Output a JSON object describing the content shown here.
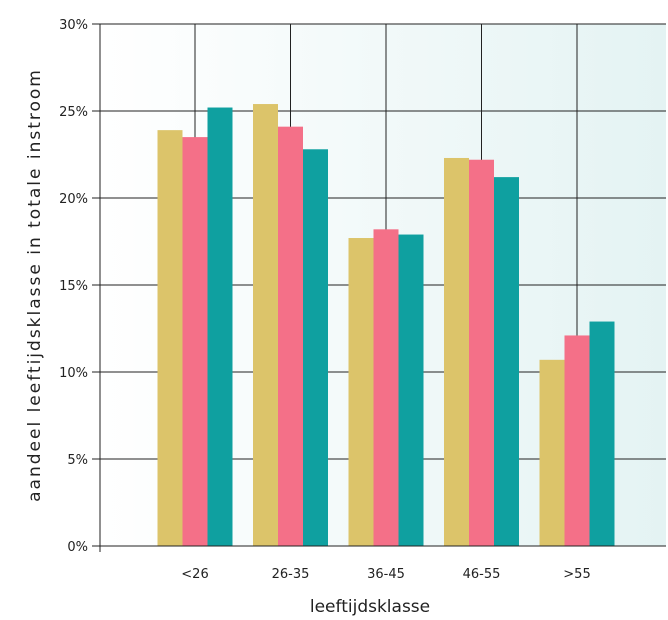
{
  "chart_data": {
    "type": "bar",
    "xlabel": "leeftijdsklasse",
    "ylabel": "aandeel leeftijdsklasse in totale instroom",
    "categories": [
      "<26",
      "26-35",
      "36-45",
      "46-55",
      ">55"
    ],
    "series": [
      {
        "color": "#dcc46a",
        "values": [
          23.9,
          25.4,
          17.7,
          22.3,
          10.7
        ]
      },
      {
        "color": "#f47088",
        "values": [
          23.5,
          24.1,
          18.2,
          22.2,
          12.1
        ]
      },
      {
        "color": "#0fa0a0",
        "values": [
          25.2,
          22.8,
          17.9,
          21.2,
          12.9
        ]
      }
    ],
    "ylim": [
      0,
      30
    ],
    "yticks": [
      "0%",
      "5%",
      "10%",
      "15%",
      "20%",
      "25%",
      "30%"
    ],
    "grid": true,
    "plot_background": [
      "#ffffff",
      "#e4f3f3"
    ]
  }
}
